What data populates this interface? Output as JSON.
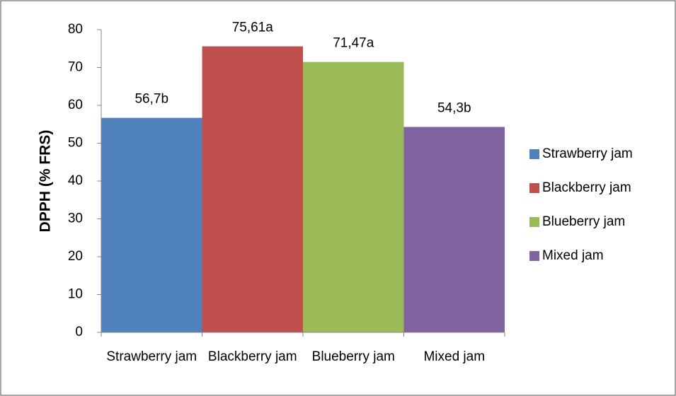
{
  "chart_data": {
    "type": "bar",
    "y_label": "DPPH (% FRS)",
    "categories": [
      "Strawberry jam",
      "Blackberry jam",
      "Blueberry jam",
      "Mixed jam"
    ],
    "series": [
      {
        "name": "Strawberry jam",
        "color": "#4f81bd",
        "values": [
          56.7,
          null,
          null,
          null
        ],
        "value_labels": [
          "56,7b",
          null,
          null,
          null
        ]
      },
      {
        "name": "Blackberry jam",
        "color": "#c0504d",
        "values": [
          null,
          75.61,
          null,
          null
        ],
        "value_labels": [
          null,
          "75,61a",
          null,
          null
        ]
      },
      {
        "name": "Blueberry jam",
        "color": "#9bbb59",
        "values": [
          null,
          null,
          71.47,
          null
        ],
        "value_labels": [
          null,
          null,
          "71,47a",
          null
        ]
      },
      {
        "name": "Mixed jam",
        "color": "#8064a2",
        "values": [
          null,
          null,
          null,
          54.3
        ],
        "value_labels": [
          null,
          null,
          null,
          "54,3b"
        ]
      }
    ],
    "ylim": [
      0,
      80
    ],
    "yticks": [
      0,
      10,
      20,
      30,
      40,
      50,
      60,
      70,
      80
    ],
    "legend": "right"
  }
}
